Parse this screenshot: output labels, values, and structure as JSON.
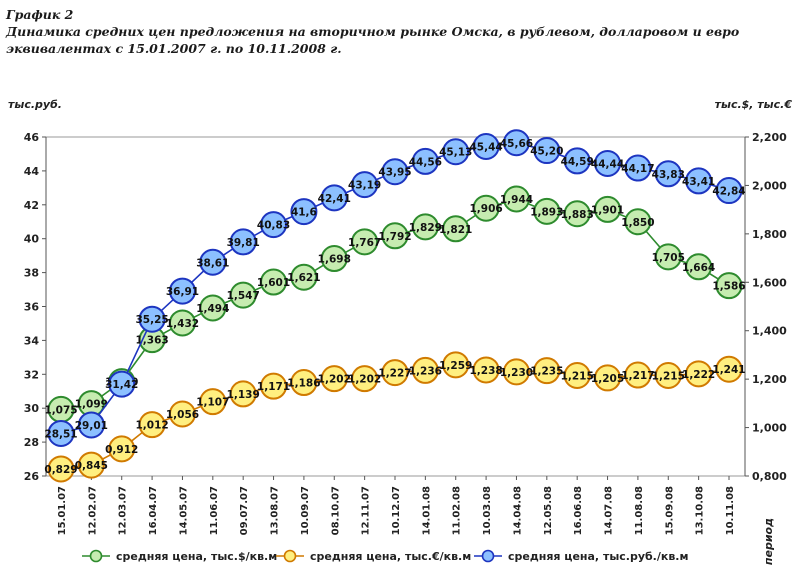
{
  "caption": {
    "number": "График 2",
    "text": "Динамика средних цен предложения на вторичном рынке Омска, в рублевом, долларовом и евро эквивалентах с 15.01.2007 г. по 10.11.2008 г."
  },
  "chart_data": {
    "type": "line",
    "categories": [
      "15.01.07",
      "12.02.07",
      "12.03.07",
      "16.04.07",
      "14.05.07",
      "11.06.07",
      "09.07.07",
      "13.08.07",
      "10.09.07",
      "08.10.07",
      "12.11.07",
      "10.12.07",
      "14.01.08",
      "11.02.08",
      "10.03.08",
      "14.04.08",
      "12.05.08",
      "16.06.08",
      "14.07.08",
      "11.08.08",
      "15.09.08",
      "13.10.08",
      "10.11.08"
    ],
    "left_axis": {
      "label": "тыс.руб.",
      "min": 26,
      "max": 46,
      "step": 2,
      "ticks": [
        "26",
        "28",
        "30",
        "32",
        "34",
        "36",
        "38",
        "40",
        "42",
        "44",
        "46"
      ]
    },
    "right_axis": {
      "label": "тыс.$, тыс.€",
      "min": 0.8,
      "max": 2.2,
      "step": 0.2,
      "ticks": [
        "0,800",
        "1,000",
        "1,200",
        "1,400",
        "1,600",
        "1,800",
        "2,000",
        "2,200"
      ]
    },
    "x_axis_label": "период",
    "series": [
      {
        "name": "средняя цена, тыс.$/кв.м",
        "axis": "right",
        "color": "#2e8b2e",
        "fill": "#c6ecb0",
        "values": [
          1.075,
          1.099,
          1.19,
          1.363,
          1.432,
          1.494,
          1.547,
          1.601,
          1.621,
          1.698,
          1.767,
          1.792,
          1.829,
          1.821,
          1.906,
          1.944,
          1.893,
          1.883,
          1.901,
          1.85,
          1.705,
          1.664,
          1.586
        ],
        "labels": [
          "1,075",
          "1,099",
          "1,190",
          "1,363",
          "1,432",
          "1,494",
          "1,547",
          "1,601",
          "1,621",
          "1,698",
          "1,767",
          "1,792",
          "1,829",
          "1,821",
          "1,906",
          "1,944",
          "1,893",
          "1,883",
          "1,901",
          "1,850",
          "1,705",
          "1,664",
          "1,586"
        ]
      },
      {
        "name": "средняя цена, тыс.€/кв.м",
        "axis": "right",
        "color": "#d07a00",
        "fill": "#ffef80",
        "values": [
          0.829,
          0.845,
          0.912,
          1.012,
          1.056,
          1.107,
          1.139,
          1.171,
          1.186,
          1.202,
          1.202,
          1.227,
          1.236,
          1.259,
          1.238,
          1.23,
          1.235,
          1.215,
          1.205,
          1.217,
          1.215,
          1.222,
          1.241
        ],
        "labels": [
          "0,829",
          "0,845",
          "0,912",
          "1,012",
          "1,056",
          "1,107",
          "1,139",
          "1,171",
          "1,186",
          "1,202",
          "1,202",
          "1,227",
          "1,236",
          "1,259",
          "1,238",
          "1,230",
          "1,235",
          "1,215",
          "1,205",
          "1,217",
          "1,215",
          "1,222",
          "1,241"
        ]
      },
      {
        "name": "средняя цена, тыс.руб./кв.м",
        "axis": "left",
        "color": "#1d35c0",
        "fill": "#8cc0ff",
        "values": [
          28.51,
          29.01,
          31.42,
          35.25,
          36.91,
          38.61,
          39.81,
          40.83,
          41.6,
          42.41,
          43.19,
          43.95,
          44.56,
          45.13,
          45.44,
          45.66,
          45.2,
          44.59,
          44.44,
          44.17,
          43.83,
          43.41,
          42.84
        ],
        "labels": [
          "28,51",
          "29,01",
          "31,42",
          "35,25",
          "36,91",
          "38,61",
          "39,81",
          "40,83",
          "41,6",
          "42,41",
          "43,19",
          "43,95",
          "44,56",
          "45,13",
          "45,44",
          "45,66",
          "45,20",
          "44,59",
          "44,44",
          "44,17",
          "43,83",
          "43,41",
          "42,84"
        ]
      }
    ],
    "grid": false,
    "legend_position": "bottom"
  }
}
